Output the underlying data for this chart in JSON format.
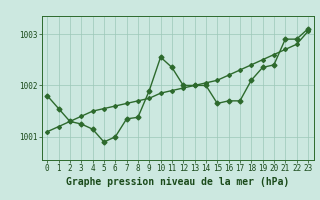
{
  "xlabel": "Graphe pression niveau de la mer (hPa)",
  "x_ticks": [
    0,
    1,
    2,
    3,
    4,
    5,
    6,
    7,
    8,
    9,
    10,
    11,
    12,
    13,
    14,
    15,
    16,
    17,
    18,
    19,
    20,
    21,
    22,
    23
  ],
  "x_labels": [
    "0",
    "1",
    "2",
    "3",
    "4",
    "5",
    "6",
    "7",
    "8",
    "9",
    "10",
    "11",
    "12",
    "13",
    "14",
    "15",
    "16",
    "17",
    "18",
    "19",
    "20",
    "21",
    "22",
    "23"
  ],
  "ylim": [
    1000.55,
    1003.35
  ],
  "yticks": [
    1001,
    1002,
    1003
  ],
  "pressure_curve": [
    1001.8,
    1001.55,
    1001.3,
    1001.25,
    1001.15,
    1000.9,
    1001.0,
    1001.35,
    1001.38,
    1001.9,
    1002.55,
    1002.35,
    1002.0,
    1002.0,
    1002.0,
    1001.65,
    1001.7,
    1001.7,
    1002.1,
    1002.35,
    1002.4,
    1002.9,
    1002.9,
    1003.1
  ],
  "trend_line": [
    1001.1,
    1001.2,
    1001.3,
    1001.4,
    1001.5,
    1001.55,
    1001.6,
    1001.65,
    1001.7,
    1001.75,
    1001.85,
    1001.9,
    1001.95,
    1002.0,
    1002.05,
    1002.1,
    1002.2,
    1002.3,
    1002.4,
    1002.5,
    1002.6,
    1002.7,
    1002.8,
    1003.05
  ],
  "line_color": "#2d6a2d",
  "background_color": "#cce8e0",
  "grid_color": "#9cc8b8",
  "text_color": "#1a4a1a",
  "tick_fontsize": 5.5,
  "label_fontsize": 7.0,
  "marker_size": 2.5
}
